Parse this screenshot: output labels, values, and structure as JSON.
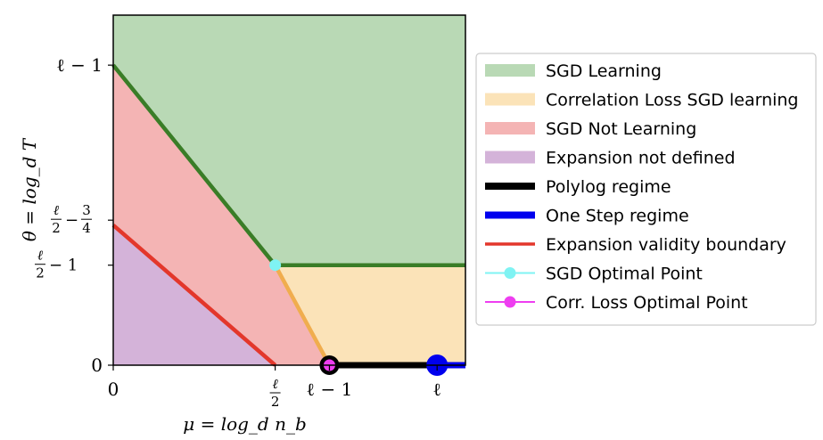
{
  "chart_data": {
    "type": "area",
    "xlabel": "μ = log_d n_b",
    "ylabel": "θ = log_d T",
    "x_ticks": [
      {
        "value": 0,
        "label": "0"
      },
      {
        "value": 2,
        "label": "ℓ/2"
      },
      {
        "value": 2.67,
        "label": "ℓ − 1"
      },
      {
        "value": 4,
        "label": "ℓ"
      }
    ],
    "y_ticks": [
      {
        "value": 0,
        "label": "0"
      },
      {
        "value": 1,
        "label": "ℓ/2 − 1"
      },
      {
        "value": 1.45,
        "label": "ℓ/2 − 3/4"
      },
      {
        "value": 3,
        "label": "ℓ − 1"
      }
    ],
    "xlim": [
      0,
      4.35
    ],
    "ylim": [
      0,
      3.5
    ],
    "regions": [
      {
        "name": "SGD Learning",
        "color": "#b9d9b5",
        "polygon": [
          [
            0,
            3
          ],
          [
            2,
            1
          ],
          [
            4.35,
            1
          ],
          [
            4.35,
            3.5
          ],
          [
            0,
            3.5
          ]
        ]
      },
      {
        "name": "Correlation Loss SGD learning",
        "color": "#fbe3b8",
        "polygon": [
          [
            2,
            1
          ],
          [
            4.35,
            1
          ],
          [
            4.35,
            0
          ],
          [
            2.67,
            0
          ]
        ]
      },
      {
        "name": "SGD Not Learning",
        "color": "#f4b4b4",
        "polygon": [
          [
            0,
            3
          ],
          [
            2,
            1
          ],
          [
            2.67,
            0
          ],
          [
            2,
            0
          ],
          [
            0,
            1.4
          ]
        ]
      },
      {
        "name": "Expansion not defined",
        "color": "#d4b3d9",
        "polygon": [
          [
            0,
            1.4
          ],
          [
            2,
            0
          ],
          [
            0,
            0
          ]
        ]
      }
    ],
    "lines": [
      {
        "name": "SGD boundary",
        "color": "#3a7d27",
        "points": [
          [
            0,
            3
          ],
          [
            2,
            1
          ],
          [
            4.35,
            1
          ]
        ]
      },
      {
        "name": "Correlation boundary",
        "color": "#f0ad4e",
        "points": [
          [
            2,
            1
          ],
          [
            2.67,
            0
          ]
        ]
      },
      {
        "name": "Polylog regime",
        "color": "#000000",
        "points": [
          [
            2.67,
            0
          ],
          [
            4.35,
            0
          ]
        ]
      },
      {
        "name": "One Step regime",
        "color": "#0000ee",
        "points": [
          [
            4,
            0
          ],
          [
            4.35,
            0
          ]
        ]
      },
      {
        "name": "Expansion validity boundary",
        "color": "#e3372b",
        "points": [
          [
            0,
            1.4
          ],
          [
            2,
            0
          ]
        ]
      }
    ],
    "points": [
      {
        "name": "SGD Optimal Point",
        "color": "#7ff3f3",
        "x": 2,
        "y": 1
      },
      {
        "name": "Corr. Loss Optimal Point",
        "color": "#ee3ef0",
        "x": 2.67,
        "y": 0
      }
    ],
    "legend": {
      "placement": "right",
      "entries": [
        {
          "kind": "patch",
          "color": "#b9d9b5",
          "label": "SGD Learning"
        },
        {
          "kind": "patch",
          "color": "#fbe3b8",
          "label": "Correlation Loss SGD learning"
        },
        {
          "kind": "patch",
          "color": "#f4b4b4",
          "label": "SGD Not Learning"
        },
        {
          "kind": "patch",
          "color": "#d4b3d9",
          "label": "Expansion not defined"
        },
        {
          "kind": "thick-line",
          "color": "#000000",
          "label": "Polylog regime"
        },
        {
          "kind": "thick-line",
          "color": "#0000ee",
          "label": "One Step regime"
        },
        {
          "kind": "line",
          "color": "#e3372b",
          "label": "Expansion validity boundary"
        },
        {
          "kind": "marker-line",
          "color": "#7ff3f3",
          "label": "SGD Optimal Point"
        },
        {
          "kind": "marker-line",
          "color": "#ee3ef0",
          "label": "Corr. Loss Optimal Point"
        }
      ]
    }
  }
}
